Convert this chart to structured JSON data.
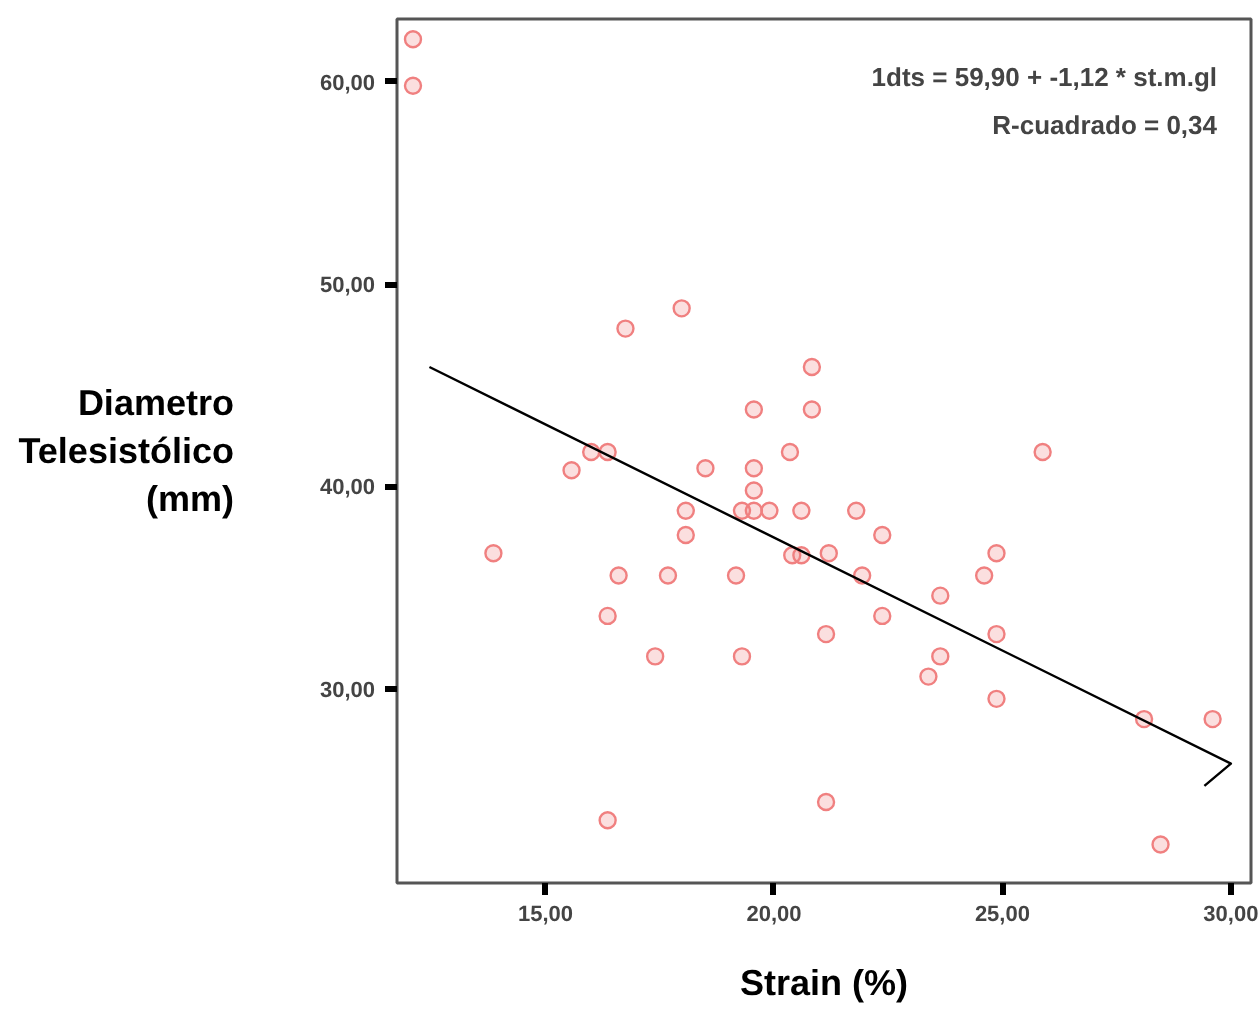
{
  "chart_data": {
    "type": "scatter",
    "xlabel": "Strain (%)",
    "ylabel": "Diametro\nTelesistólico\n(mm)",
    "annotations": [
      "1dts = 59,90 + -1,12 * st.m.gl",
      "R-cuadrado = 0,34"
    ],
    "xlim": [
      11.75,
      30.44
    ],
    "ylim": [
      20.4,
      63.1
    ],
    "xticks": [
      {
        "value": 15,
        "label": "15,00"
      },
      {
        "value": 20,
        "label": "20,00"
      },
      {
        "value": 25,
        "label": "25,00"
      },
      {
        "value": 30,
        "label": "30,00"
      }
    ],
    "yticks": [
      {
        "value": 30,
        "label": "30,00"
      },
      {
        "value": 40,
        "label": "40,00"
      },
      {
        "value": 50,
        "label": "50,00"
      },
      {
        "value": 60,
        "label": "60,00"
      }
    ],
    "grid": false,
    "marker": "circle",
    "series": [
      {
        "type": "scatter",
        "color": "#f08080",
        "x": [
          12.1,
          12.1,
          16.75,
          17.98,
          20.83,
          19.56,
          20.83,
          16.0,
          16.36,
          15.57,
          18.5,
          19.56,
          20.35,
          19.56,
          18.07,
          19.3,
          19.56,
          19.9,
          20.6,
          18.07,
          13.86,
          20.4,
          20.6,
          21.2,
          16.6,
          17.68,
          19.17,
          16.36,
          17.4,
          19.3,
          21.14,
          21.14,
          16.36,
          25.88,
          21.8,
          22.37,
          21.93,
          24.87,
          24.6,
          23.64,
          22.37,
          24.87,
          23.64,
          23.38,
          24.87,
          28.1,
          29.6,
          28.46
        ],
        "values": [
          62.1,
          59.8,
          47.8,
          48.8,
          45.9,
          43.8,
          43.8,
          41.7,
          41.7,
          40.8,
          40.9,
          40.9,
          41.7,
          39.8,
          38.8,
          38.8,
          38.8,
          38.8,
          38.8,
          37.6,
          36.7,
          36.6,
          36.6,
          36.7,
          35.6,
          35.6,
          35.6,
          33.6,
          31.6,
          31.6,
          32.7,
          24.4,
          23.5,
          41.7,
          38.8,
          37.6,
          35.6,
          36.7,
          35.6,
          34.6,
          33.6,
          32.7,
          31.6,
          30.6,
          29.5,
          28.5,
          28.5,
          22.3
        ]
      },
      {
        "type": "line",
        "color": "#000000",
        "marker": "none",
        "line_style": "solid",
        "x": [
          12.46,
          30.0,
          29.42
        ],
        "values": [
          45.9,
          26.3,
          25.2
        ]
      }
    ]
  }
}
